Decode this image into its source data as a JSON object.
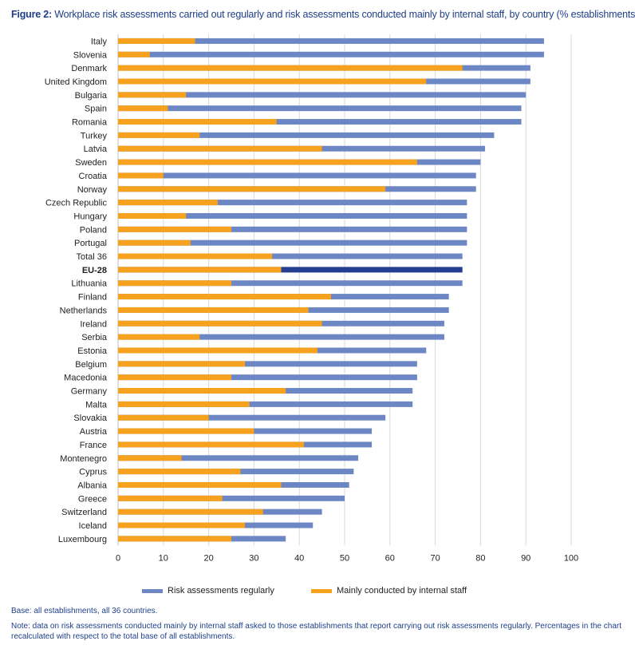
{
  "figure": {
    "label": "Figure 2:",
    "text": "Workplace risk assessments carried out regularly and risk assessments conducted mainly by internal staff, by country (% establishments)."
  },
  "chart_data": {
    "type": "bar",
    "orientation": "horizontal",
    "overlapping": true,
    "xlim": [
      0,
      100
    ],
    "xticks": [
      0,
      10,
      20,
      30,
      40,
      50,
      60,
      70,
      80,
      90,
      100
    ],
    "grid": true,
    "legend_position": "bottom",
    "highlight_category": "EU-28",
    "colors": {
      "regular": "#6d87c4",
      "internal": "#f6a21f",
      "highlight": "#243f8f",
      "grid": "#d9d9d9",
      "axis": "#bfbfbf"
    },
    "categories": [
      "Italy",
      "Slovenia",
      "Denmark",
      "United Kingdom",
      "Bulgaria",
      "Spain",
      "Romania",
      "Turkey",
      "Latvia",
      "Sweden",
      "Croatia",
      "Norway",
      "Czech Republic",
      "Hungary",
      "Poland",
      "Portugal",
      "Total 36",
      "EU-28",
      "Lithuania",
      "Finland",
      "Netherlands",
      "Ireland",
      "Serbia",
      "Estonia",
      "Belgium",
      "Macedonia",
      "Germany",
      "Malta",
      "Slovakia",
      "Austria",
      "France",
      "Montenegro",
      "Cyprus",
      "Albania",
      "Greece",
      "Switzerland",
      "Iceland",
      "Luxembourg"
    ],
    "series": [
      {
        "name": "Risk assessments regularly",
        "values": [
          94,
          94,
          91,
          91,
          90,
          89,
          89,
          83,
          81,
          80,
          79,
          79,
          77,
          77,
          77,
          77,
          76,
          76,
          76,
          73,
          73,
          72,
          72,
          68,
          66,
          66,
          65,
          65,
          59,
          56,
          56,
          53,
          52,
          51,
          50,
          45,
          43,
          37
        ]
      },
      {
        "name": "Mainly conducted by internal staff",
        "values": [
          17,
          7,
          76,
          68,
          15,
          11,
          35,
          18,
          45,
          66,
          10,
          59,
          22,
          15,
          25,
          16,
          34,
          36,
          25,
          47,
          42,
          45,
          18,
          44,
          28,
          25,
          37,
          29,
          20,
          30,
          41,
          14,
          27,
          36,
          23,
          32,
          28,
          25
        ]
      }
    ]
  },
  "footer": {
    "base": "Base: all establishments, all 36 countries.",
    "note": "Note: data on risk assessments conducted mainly by internal staff asked to those establishments that report carrying out risk assessments regularly. Percentages in the chart recalculated with respect to the total base of all establishments."
  }
}
